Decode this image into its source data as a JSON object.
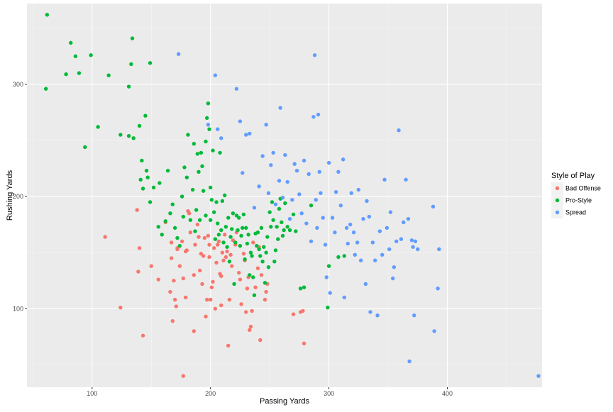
{
  "chart_data": {
    "type": "scatter",
    "title": "",
    "xlabel": "Passing Yards",
    "ylabel": "Rushing Yards",
    "xlim": [
      45,
      480
    ],
    "ylim": [
      30,
      372
    ],
    "x_ticks": [
      100,
      200,
      300,
      400
    ],
    "y_ticks": [
      100,
      200,
      300
    ],
    "grid": true,
    "legend": {
      "title": "Style of Play",
      "position": "right"
    },
    "series": [
      {
        "name": "Bad Offense",
        "color": "#F8766D",
        "points": [
          [
            111,
            164
          ],
          [
            124,
            101
          ],
          [
            138,
            188
          ],
          [
            140,
            154
          ],
          [
            139,
            133
          ],
          [
            143,
            76
          ],
          [
            150,
            138
          ],
          [
            156,
            126
          ],
          [
            162,
            177
          ],
          [
            166,
            115
          ],
          [
            167,
            159
          ],
          [
            167,
            145
          ],
          [
            168,
            89
          ],
          [
            169,
            125
          ],
          [
            170,
            108
          ],
          [
            171,
            102
          ],
          [
            172,
            154
          ],
          [
            172,
            153
          ],
          [
            174,
            138
          ],
          [
            176,
            160
          ],
          [
            177,
            127
          ],
          [
            177,
            40
          ],
          [
            179,
            110
          ],
          [
            179,
            151
          ],
          [
            180,
            152
          ],
          [
            181,
            187
          ],
          [
            182,
            185
          ],
          [
            183,
            168
          ],
          [
            186,
            130
          ],
          [
            186,
            80
          ],
          [
            187,
            157
          ],
          [
            189,
            175
          ],
          [
            190,
            164
          ],
          [
            191,
            134
          ],
          [
            192,
            149
          ],
          [
            193,
            122
          ],
          [
            194,
            147
          ],
          [
            195,
            163
          ],
          [
            196,
            93
          ],
          [
            197,
            108
          ],
          [
            198,
            165
          ],
          [
            199,
            146
          ],
          [
            199,
            157
          ],
          [
            200,
            108
          ],
          [
            201,
            119
          ],
          [
            202,
            124
          ],
          [
            203,
            154
          ],
          [
            204,
            100
          ],
          [
            205,
            141
          ],
          [
            206,
            157
          ],
          [
            207,
            160
          ],
          [
            208,
            131
          ],
          [
            209,
            103
          ],
          [
            209,
            129
          ],
          [
            210,
            150
          ],
          [
            211,
            143
          ],
          [
            212,
            166
          ],
          [
            213,
            146
          ],
          [
            214,
            151
          ],
          [
            215,
            67
          ],
          [
            216,
            108
          ],
          [
            217,
            148
          ],
          [
            218,
            138
          ],
          [
            219,
            161
          ],
          [
            221,
            157
          ],
          [
            222,
            168
          ],
          [
            224,
            132
          ],
          [
            225,
            126
          ],
          [
            226,
            104
          ],
          [
            228,
            149
          ],
          [
            229,
            143
          ],
          [
            230,
            97
          ],
          [
            231,
            118
          ],
          [
            232,
            128
          ],
          [
            233,
            81
          ],
          [
            234,
            84
          ],
          [
            235,
            98
          ],
          [
            236,
            159
          ],
          [
            238,
            119
          ],
          [
            240,
            136
          ],
          [
            241,
            155
          ],
          [
            242,
            72
          ],
          [
            243,
            130
          ],
          [
            246,
            108
          ],
          [
            247,
            115
          ],
          [
            248,
            122
          ],
          [
            270,
            95
          ],
          [
            276,
            97
          ],
          [
            278,
            98
          ],
          [
            279,
            69
          ]
        ]
      },
      {
        "name": "Pro-Style",
        "color": "#00BA38",
        "points": [
          [
            61,
            296
          ],
          [
            62,
            362
          ],
          [
            78,
            309
          ],
          [
            82,
            337
          ],
          [
            86,
            325
          ],
          [
            89,
            310
          ],
          [
            94,
            244
          ],
          [
            99,
            326
          ],
          [
            105,
            262
          ],
          [
            114,
            308
          ],
          [
            124,
            255
          ],
          [
            131,
            298
          ],
          [
            131,
            254
          ],
          [
            133,
            318
          ],
          [
            134,
            341
          ],
          [
            135,
            252
          ],
          [
            140,
            263
          ],
          [
            141,
            215
          ],
          [
            142,
            232
          ],
          [
            143,
            207
          ],
          [
            145,
            272
          ],
          [
            146,
            223
          ],
          [
            147,
            217
          ],
          [
            149,
            195
          ],
          [
            149,
            319
          ],
          [
            152,
            208
          ],
          [
            156,
            173
          ],
          [
            157,
            212
          ],
          [
            159,
            166
          ],
          [
            162,
            178
          ],
          [
            164,
            223
          ],
          [
            166,
            185
          ],
          [
            168,
            193
          ],
          [
            170,
            172
          ],
          [
            172,
            163
          ],
          [
            174,
            156
          ],
          [
            176,
            200
          ],
          [
            177,
            182
          ],
          [
            178,
            226
          ],
          [
            180,
            217
          ],
          [
            181,
            255
          ],
          [
            183,
            179
          ],
          [
            185,
            206
          ],
          [
            186,
            247
          ],
          [
            187,
            169
          ],
          [
            188,
            188
          ],
          [
            189,
            238
          ],
          [
            190,
            222
          ],
          [
            191,
            179
          ],
          [
            192,
            239
          ],
          [
            193,
            227
          ],
          [
            194,
            205
          ],
          [
            196,
            183
          ],
          [
            196,
            249
          ],
          [
            197,
            270
          ],
          [
            198,
            283
          ],
          [
            199,
            260
          ],
          [
            200,
            179
          ],
          [
            200,
            208
          ],
          [
            201,
            197
          ],
          [
            202,
            241
          ],
          [
            203,
            186
          ],
          [
            204,
            162
          ],
          [
            205,
            195
          ],
          [
            206,
            176
          ],
          [
            207,
            166
          ],
          [
            208,
            239
          ],
          [
            209,
            170
          ],
          [
            210,
            196
          ],
          [
            211,
            159
          ],
          [
            212,
            201
          ],
          [
            213,
            173
          ],
          [
            214,
            155
          ],
          [
            215,
            181
          ],
          [
            216,
            142
          ],
          [
            217,
            164
          ],
          [
            218,
            171
          ],
          [
            219,
            185
          ],
          [
            220,
            122
          ],
          [
            221,
            159
          ],
          [
            222,
            183
          ],
          [
            223,
            170
          ],
          [
            224,
            181
          ],
          [
            225,
            156
          ],
          [
            226,
            165
          ],
          [
            227,
            172
          ],
          [
            228,
            184
          ],
          [
            229,
            144
          ],
          [
            230,
            172
          ],
          [
            231,
            158
          ],
          [
            232,
            166
          ],
          [
            233,
            130
          ],
          [
            234,
            150
          ],
          [
            235,
            147
          ],
          [
            236,
            128
          ],
          [
            237,
            112
          ],
          [
            238,
            167
          ],
          [
            239,
            156
          ],
          [
            240,
            168
          ],
          [
            241,
            153
          ],
          [
            242,
            147
          ],
          [
            243,
            172
          ],
          [
            244,
            142
          ],
          [
            245,
            155
          ],
          [
            246,
            123
          ],
          [
            247,
            150
          ],
          [
            248,
            164
          ],
          [
            249,
            137
          ],
          [
            250,
            186
          ],
          [
            251,
            173
          ],
          [
            252,
            195
          ],
          [
            253,
            179
          ],
          [
            254,
            142
          ],
          [
            255,
            152
          ],
          [
            256,
            173
          ],
          [
            257,
            162
          ],
          [
            258,
            189
          ],
          [
            259,
            198
          ],
          [
            260,
            177
          ],
          [
            261,
            165
          ],
          [
            262,
            170
          ],
          [
            263,
            194
          ],
          [
            265,
            173
          ],
          [
            267,
            170
          ],
          [
            270,
            184
          ],
          [
            272,
            169
          ],
          [
            276,
            118
          ],
          [
            279,
            119
          ],
          [
            285,
            192
          ],
          [
            299,
            101
          ],
          [
            300,
            138
          ],
          [
            308,
            146
          ],
          [
            313,
            147
          ]
        ]
      },
      {
        "name": "Spread",
        "color": "#619CFF",
        "points": [
          [
            173,
            327
          ],
          [
            198,
            264
          ],
          [
            204,
            308
          ],
          [
            206,
            260
          ],
          [
            209,
            252
          ],
          [
            222,
            296
          ],
          [
            225,
            267
          ],
          [
            227,
            221
          ],
          [
            230,
            255
          ],
          [
            233,
            256
          ],
          [
            237,
            190
          ],
          [
            241,
            209
          ],
          [
            244,
            236
          ],
          [
            247,
            264
          ],
          [
            249,
            203
          ],
          [
            251,
            228
          ],
          [
            253,
            239
          ],
          [
            255,
            193
          ],
          [
            258,
            214
          ],
          [
            259,
            279
          ],
          [
            261,
            199
          ],
          [
            263,
            237
          ],
          [
            265,
            213
          ],
          [
            267,
            180
          ],
          [
            269,
            197
          ],
          [
            271,
            229
          ],
          [
            273,
            223
          ],
          [
            275,
            202
          ],
          [
            277,
            185
          ],
          [
            279,
            232
          ],
          [
            281,
            176
          ],
          [
            283,
            220
          ],
          [
            285,
            160
          ],
          [
            287,
            271
          ],
          [
            288,
            326
          ],
          [
            289,
            197
          ],
          [
            290,
            172
          ],
          [
            291,
            273
          ],
          [
            292,
            222
          ],
          [
            293,
            203
          ],
          [
            295,
            181
          ],
          [
            297,
            157
          ],
          [
            298,
            128
          ],
          [
            300,
            230
          ],
          [
            301,
            114
          ],
          [
            303,
            181
          ],
          [
            305,
            168
          ],
          [
            306,
            204
          ],
          [
            308,
            222
          ],
          [
            310,
            192
          ],
          [
            312,
            233
          ],
          [
            313,
            110
          ],
          [
            315,
            172
          ],
          [
            316,
            158
          ],
          [
            318,
            175
          ],
          [
            319,
            203
          ],
          [
            321,
            168
          ],
          [
            322,
            148
          ],
          [
            324,
            159
          ],
          [
            325,
            206
          ],
          [
            327,
            143
          ],
          [
            329,
            180
          ],
          [
            331,
            122
          ],
          [
            332,
            196
          ],
          [
            334,
            182
          ],
          [
            335,
            97
          ],
          [
            337,
            159
          ],
          [
            339,
            143
          ],
          [
            341,
            94
          ],
          [
            343,
            169
          ],
          [
            345,
            148
          ],
          [
            347,
            215
          ],
          [
            349,
            172
          ],
          [
            351,
            153
          ],
          [
            352,
            186
          ],
          [
            354,
            127
          ],
          [
            355,
            137
          ],
          [
            357,
            160
          ],
          [
            359,
            259
          ],
          [
            361,
            162
          ],
          [
            363,
            177
          ],
          [
            365,
            215
          ],
          [
            367,
            180
          ],
          [
            368,
            53
          ],
          [
            370,
            161
          ],
          [
            371,
            155
          ],
          [
            372,
            94
          ],
          [
            373,
            160
          ],
          [
            375,
            153
          ],
          [
            388,
            191
          ],
          [
            389,
            80
          ],
          [
            392,
            118
          ],
          [
            393,
            153
          ],
          [
            477,
            40
          ]
        ]
      }
    ]
  }
}
